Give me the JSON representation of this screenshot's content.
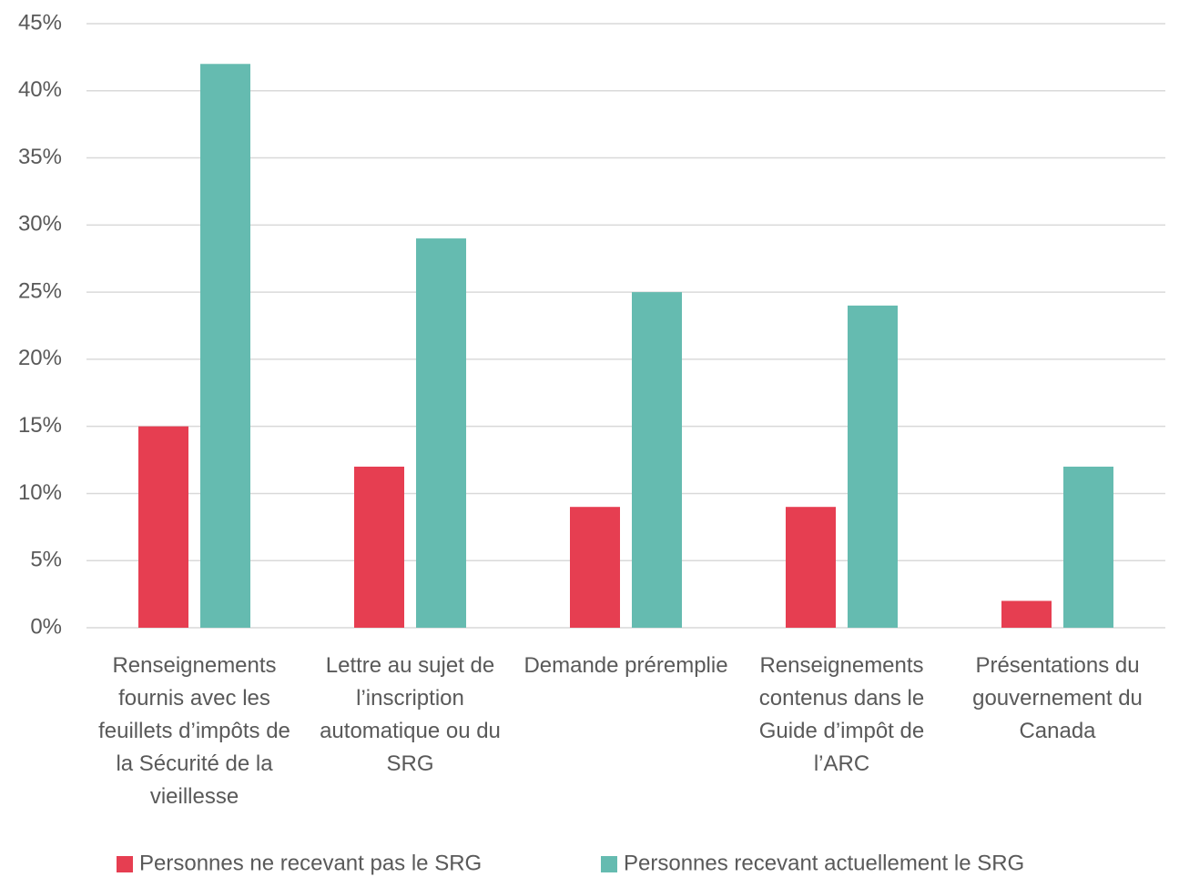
{
  "chart_data": {
    "type": "bar",
    "categories": [
      "Renseignements fournis avec les feuillets d’impôts de la Sécurité de la vieillesse",
      "Lettre au sujet de l’inscription automatique ou du SRG",
      "Demande préremplie",
      "Renseignements contenus dans le Guide d’impôt de l’ARC",
      "Présentations du gouvernement du Canada"
    ],
    "series": [
      {
        "name": "Personnes ne recevant pas le SRG",
        "color": "#e63e51",
        "values": [
          15,
          12,
          9,
          9,
          2
        ]
      },
      {
        "name": "Personnes recevant actuellement le SRG",
        "color": "#65bbb0",
        "values": [
          42,
          29,
          25,
          24,
          12
        ]
      }
    ],
    "ylim": [
      0,
      45
    ],
    "yticks": [
      {
        "value": 0,
        "label": "0%"
      },
      {
        "value": 5,
        "label": "5%"
      },
      {
        "value": 10,
        "label": "10%"
      },
      {
        "value": 15,
        "label": "15%"
      },
      {
        "value": 20,
        "label": "20%"
      },
      {
        "value": 25,
        "label": "25%"
      },
      {
        "value": 30,
        "label": "30%"
      },
      {
        "value": 35,
        "label": "35%"
      },
      {
        "value": 40,
        "label": "40%"
      },
      {
        "value": 45,
        "label": "45%"
      }
    ],
    "grid": true,
    "legend": "bottom"
  }
}
